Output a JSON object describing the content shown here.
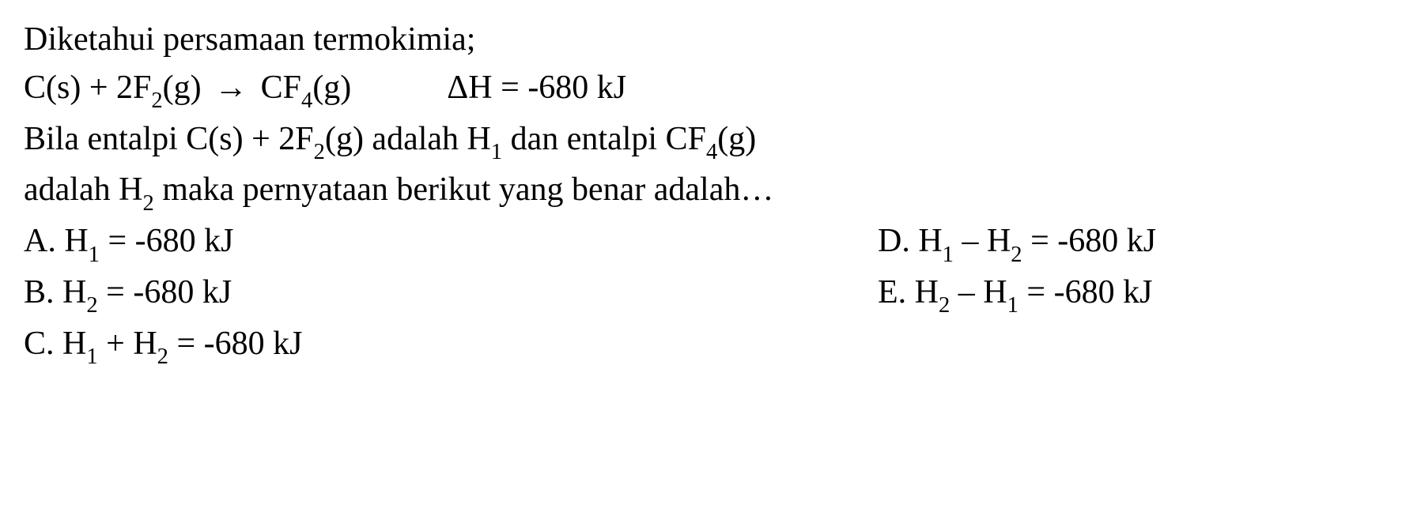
{
  "intro": "Diketahui persamaan termokimia;",
  "equation": {
    "lhs_pre": "C(s) + 2F",
    "lhs_sub": "2",
    "lhs_post": "(g)",
    "arrow": "→",
    "rhs_pre": "CF",
    "rhs_sub": "4",
    "rhs_post": "(g)",
    "delta": "ΔH = -680 kJ"
  },
  "context": {
    "l1_a": "Bila entalpi C(s) + 2F",
    "l1_sub1": "2",
    "l1_b": "(g) adalah H",
    "l1_sub2": "1",
    "l1_c": " dan entalpi CF",
    "l1_sub3": "4",
    "l1_d": "(g)",
    "l2_a": "adalah H",
    "l2_sub1": "2",
    "l2_b": " maka pernyataan berikut yang benar adalah…"
  },
  "options": {
    "A": {
      "pre": "A. H",
      "sub1": "1",
      "mid": " = -680 kJ"
    },
    "B": {
      "pre": "B. H",
      "sub1": "2",
      "mid": " = -680 kJ"
    },
    "C": {
      "pre": "C. H",
      "sub1": "1",
      "mid": " + H",
      "sub2": "2",
      "post": " = -680 kJ"
    },
    "D": {
      "pre": "D. H",
      "sub1": "1",
      "mid": " – H",
      "sub2": "2",
      "post": " = -680 kJ"
    },
    "E": {
      "pre": "E. H",
      "sub1": "2",
      "mid": " – H",
      "sub2": "1",
      "post": " = -680 kJ"
    }
  },
  "style": {
    "font_size_pt": 42,
    "font_family": "Times New Roman",
    "text_color": "#000000",
    "background_color": "#ffffff",
    "line_height": 1.45
  }
}
